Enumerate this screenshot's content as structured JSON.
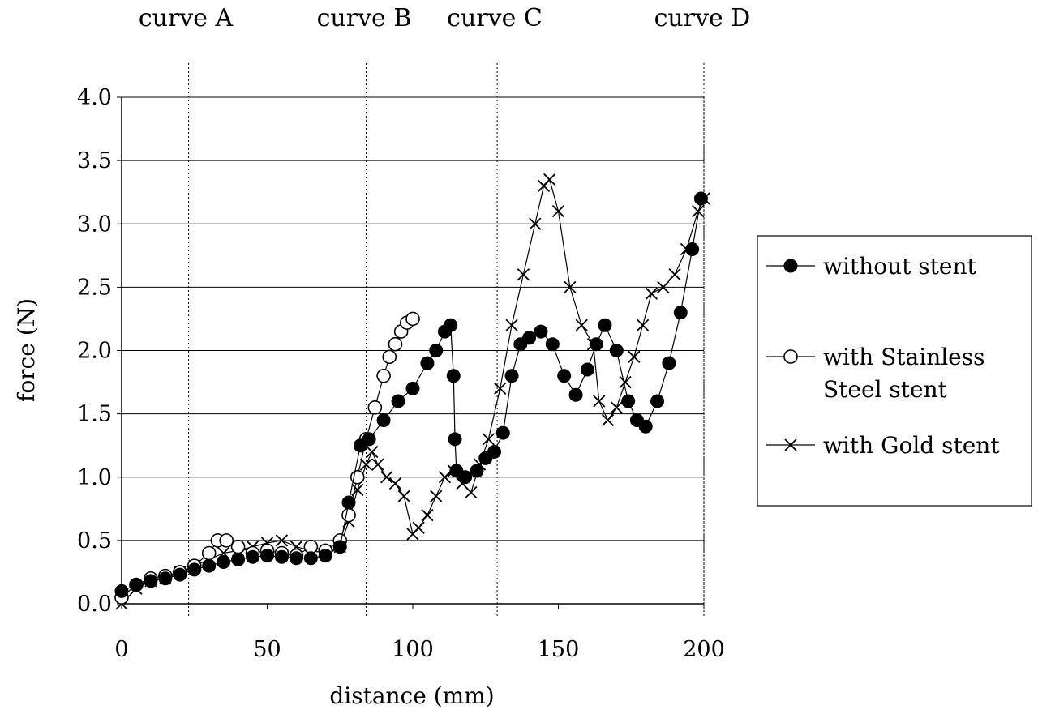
{
  "chart_data": {
    "type": "scatter",
    "xlabel": "distance (mm)",
    "ylabel": "force (N)",
    "xlim": [
      0,
      200
    ],
    "ylim": [
      0,
      4.0
    ],
    "x_ticks": [
      "0",
      "50",
      "100",
      "150",
      "200"
    ],
    "y_ticks": [
      "0.0",
      "0.5",
      "1.0",
      "1.5",
      "2.0",
      "2.5",
      "3.0",
      "3.5",
      "4.0"
    ],
    "grid": "horizontal",
    "legend_position": "right",
    "annotations": [
      {
        "label": "curve A",
        "x": 23
      },
      {
        "label": "curve B",
        "x": 84
      },
      {
        "label": "curve C",
        "x": 129
      },
      {
        "label": "curve D",
        "x": 200
      }
    ],
    "series": [
      {
        "name": "without stent",
        "marker": "filled-circle",
        "x": [
          0,
          5,
          10,
          15,
          20,
          25,
          30,
          35,
          40,
          45,
          50,
          55,
          60,
          65,
          70,
          75,
          78,
          82,
          85,
          90,
          95,
          100,
          105,
          108,
          111,
          113,
          114,
          114.5,
          115,
          118,
          122,
          125,
          128,
          131,
          134,
          137,
          140,
          144,
          148,
          152,
          156,
          160,
          163,
          166,
          170,
          174,
          177,
          180,
          184,
          188,
          192,
          196,
          199
        ],
        "y": [
          0.1,
          0.15,
          0.18,
          0.2,
          0.23,
          0.27,
          0.3,
          0.33,
          0.35,
          0.37,
          0.38,
          0.37,
          0.36,
          0.36,
          0.38,
          0.45,
          0.8,
          1.25,
          1.3,
          1.45,
          1.6,
          1.7,
          1.9,
          2.0,
          2.15,
          2.2,
          1.8,
          1.3,
          1.05,
          1.0,
          1.05,
          1.15,
          1.2,
          1.35,
          1.8,
          2.05,
          2.1,
          2.15,
          2.05,
          1.8,
          1.65,
          1.85,
          2.05,
          2.2,
          2.0,
          1.6,
          1.45,
          1.4,
          1.6,
          1.9,
          2.3,
          2.8,
          3.2
        ]
      },
      {
        "name": "with Stainless Steel stent",
        "marker": "open-circle",
        "x": [
          0,
          5,
          10,
          15,
          20,
          25,
          30,
          33,
          36,
          40,
          45,
          50,
          55,
          60,
          65,
          70,
          75,
          78,
          81,
          84,
          87,
          90,
          92,
          94,
          96,
          98,
          100
        ],
        "y": [
          0.05,
          0.15,
          0.2,
          0.22,
          0.25,
          0.3,
          0.4,
          0.5,
          0.5,
          0.45,
          0.4,
          0.42,
          0.4,
          0.38,
          0.45,
          0.42,
          0.5,
          0.7,
          1.0,
          1.3,
          1.55,
          1.8,
          1.95,
          2.05,
          2.15,
          2.22,
          2.25
        ]
      },
      {
        "name": "with Gold stent",
        "marker": "cross",
        "x": [
          0,
          5,
          10,
          15,
          20,
          25,
          30,
          35,
          40,
          45,
          50,
          55,
          60,
          65,
          70,
          75,
          78,
          81,
          84,
          86,
          88,
          91,
          94,
          97,
          100,
          102,
          105,
          108,
          111,
          114,
          117,
          120,
          123,
          126,
          130,
          134,
          138,
          142,
          145,
          147,
          150,
          154,
          158,
          162,
          164,
          167,
          170,
          173,
          176,
          179,
          182,
          186,
          190,
          194,
          198,
          200
        ],
        "y": [
          0.0,
          0.12,
          0.18,
          0.2,
          0.25,
          0.3,
          0.35,
          0.4,
          0.42,
          0.45,
          0.48,
          0.5,
          0.45,
          0.42,
          0.4,
          0.45,
          0.65,
          0.9,
          1.1,
          1.2,
          1.1,
          1.0,
          0.95,
          0.85,
          0.55,
          0.6,
          0.7,
          0.85,
          1.0,
          1.05,
          0.95,
          0.88,
          1.1,
          1.3,
          1.7,
          2.2,
          2.6,
          3.0,
          3.3,
          3.35,
          3.1,
          2.5,
          2.2,
          2.05,
          1.6,
          1.45,
          1.55,
          1.75,
          1.95,
          2.2,
          2.45,
          2.5,
          2.6,
          2.8,
          3.1,
          3.2
        ]
      }
    ]
  }
}
